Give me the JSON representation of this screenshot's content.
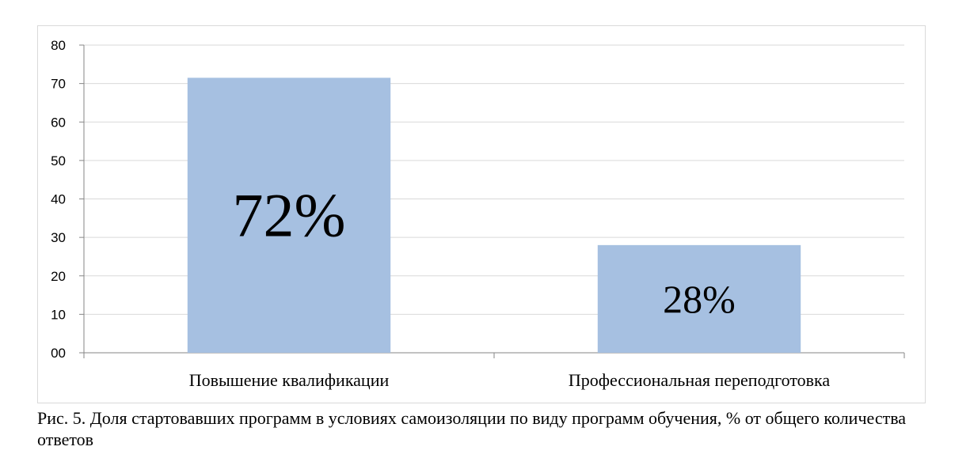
{
  "chart_data": {
    "type": "bar",
    "categories": [
      "Повышение квалификации",
      "Профессиональная переподготовка"
    ],
    "values": [
      71.5,
      28
    ],
    "data_labels": [
      "72%",
      "28%"
    ],
    "yticks": [
      "00",
      "10",
      "20",
      "30",
      "40",
      "50",
      "60",
      "70",
      "80"
    ],
    "ylim": [
      0,
      80
    ],
    "grid": true,
    "bar_color": "#a6c0e1",
    "grid_color": "#d9d9d9"
  },
  "caption": "Рис. 5. Доля стартовавших программ в условиях самоизоляции по виду программ обучения, % от общего количества ответов"
}
